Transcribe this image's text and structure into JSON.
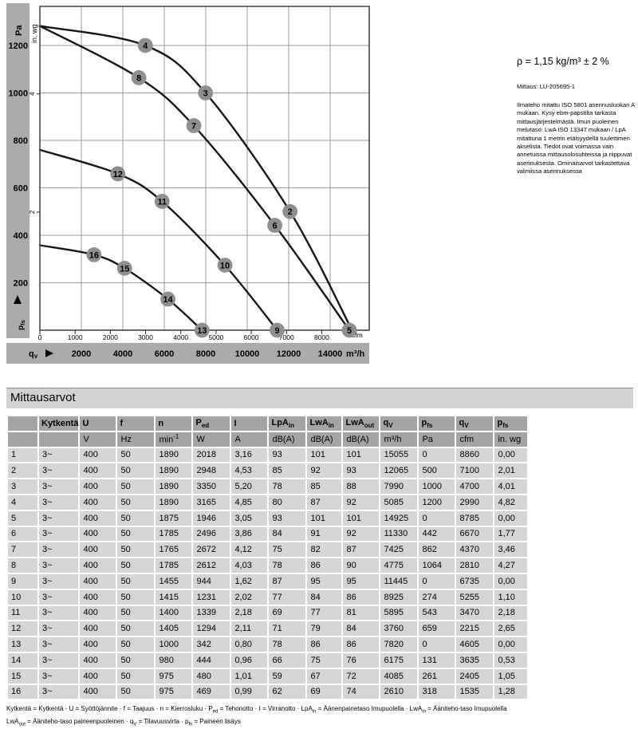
{
  "colors": {
    "axis_band": "#ababab",
    "table_header": "#a4a4a4",
    "table_row": "#d5d5d5",
    "section_band": "#d3d3d3",
    "marker": "#8f8f8f",
    "fan_curve": "#161616",
    "system_curve": "#878787",
    "grid": "#9b9b9b",
    "plot_border": "#4a4a4a"
  },
  "chart_data": {
    "type": "line",
    "title": "",
    "x_axis": {
      "quantity": "qv",
      "unit_band": "m³/h",
      "m3h_ticks": [
        2000,
        4000,
        6000,
        8000,
        10000,
        12000,
        14000
      ],
      "cfm_unit": "cfm",
      "cfm_ticks": [
        0,
        1000,
        2000,
        3000,
        4000,
        5000,
        6000,
        7000,
        8000
      ],
      "range_m3h": [
        0,
        15900
      ]
    },
    "y_axis": {
      "quantity": "pfs",
      "unit_band": "Pa",
      "pa_ticks": [
        200,
        400,
        600,
        800,
        1000,
        1200
      ],
      "inwg_unit": "in. wg",
      "inwg_ticks": [
        {
          "label": "4",
          "pa": 996
        },
        {
          "label": "2",
          "pa": 498
        }
      ],
      "range_pa": [
        0,
        1365
      ]
    },
    "fan_curves": [
      {
        "through_points": "4,3,2,1",
        "points_q_p": [
          [
            0,
            1282
          ],
          [
            5085,
            1200
          ],
          [
            7990,
            1000
          ],
          [
            12065,
            500
          ],
          [
            15055,
            0
          ]
        ]
      },
      {
        "through_points": "8,7,6,5",
        "points_q_p": [
          [
            0,
            1282
          ],
          [
            4775,
            1064
          ],
          [
            7425,
            862
          ],
          [
            11330,
            442
          ],
          [
            14925,
            0
          ]
        ]
      },
      {
        "through_points": "12,11,10,9",
        "points_q_p": [
          [
            0,
            760
          ],
          [
            3760,
            659
          ],
          [
            5895,
            543
          ],
          [
            8925,
            274
          ],
          [
            11445,
            0
          ]
        ]
      },
      {
        "through_points": "16,15,14,13",
        "points_q_p": [
          [
            0,
            358
          ],
          [
            2610,
            318
          ],
          [
            4085,
            261
          ],
          [
            6175,
            131
          ],
          [
            7820,
            0
          ]
        ]
      }
    ],
    "system_curves": [
      {
        "k_pa_per_m3h2": 4.66e-08,
        "q_end": 5085,
        "through_points": "16,12,8,4"
      },
      {
        "k_pa_per_m3h2": 1.5655e-08,
        "q_end": 7990,
        "through_points": "15,11,7,3"
      },
      {
        "k_pa_per_m3h2": 3.4375e-09,
        "q_end": 12065,
        "through_points": "14,10,6,2"
      }
    ],
    "operating_points": [
      {
        "label": "2",
        "q_m3h": 12065,
        "p_pa": 500
      },
      {
        "label": "3",
        "q_m3h": 7990,
        "p_pa": 1000
      },
      {
        "label": "4",
        "q_m3h": 5085,
        "p_pa": 1200
      },
      {
        "label": "5",
        "q_m3h": 14925,
        "p_pa": 0
      },
      {
        "label": "6",
        "q_m3h": 11330,
        "p_pa": 442
      },
      {
        "label": "7",
        "q_m3h": 7425,
        "p_pa": 862
      },
      {
        "label": "8",
        "q_m3h": 4775,
        "p_pa": 1064
      },
      {
        "label": "9",
        "q_m3h": 11445,
        "p_pa": 0
      },
      {
        "label": "10",
        "q_m3h": 8925,
        "p_pa": 274
      },
      {
        "label": "11",
        "q_m3h": 5895,
        "p_pa": 543
      },
      {
        "label": "12",
        "q_m3h": 3760,
        "p_pa": 659
      },
      {
        "label": "13",
        "q_m3h": 7820,
        "p_pa": 0
      },
      {
        "label": "14",
        "q_m3h": 6175,
        "p_pa": 131
      },
      {
        "label": "15",
        "q_m3h": 4085,
        "p_pa": 261
      },
      {
        "label": "16",
        "q_m3h": 2610,
        "p_pa": 318
      }
    ]
  },
  "side_text": {
    "density": "ρ = 1,15 kg/m³ ± 2 %",
    "measurement": "Mittaus: LU-205695-1",
    "note": "Ilmateho mitattu ISO 5801 asennusluokan A mukaan. Kysy ebm-papstilta tarkasta mittausjärjestelmästä. Imun puoleinen melutaso: LwA  ISO 13347 mukaan / LpA mitattuna 1 metrin etäisyydellä tuulettimen akselista. Tiedot ovat voimassa vain annetuissa mittausolosuhteissa ja riippuvat asennuksesta. Ominaisarvot tarkastettava valmiissa asennuksessa"
  },
  "section_title": "Mittausarvot",
  "table": {
    "columns": [
      {
        "main": ""
      },
      {
        "main": "Kytkentä"
      },
      {
        "main": "U"
      },
      {
        "main": "f"
      },
      {
        "main": "n"
      },
      {
        "main": "P",
        "sub": "ed"
      },
      {
        "main": "I"
      },
      {
        "main": "LpA",
        "sub": "in"
      },
      {
        "main": "LwA",
        "sub": "in"
      },
      {
        "main": "LwA",
        "sub": "out"
      },
      {
        "main": "q",
        "sub": "V"
      },
      {
        "main": "p",
        "sub": "fs"
      },
      {
        "main": "q",
        "sub": "V"
      },
      {
        "main": "p",
        "sub": "fs"
      }
    ],
    "units": [
      "",
      "",
      "V",
      "Hz",
      {
        "main": "min",
        "sup": "-1"
      },
      "W",
      "A",
      "dB(A)",
      "dB(A)",
      "dB(A)",
      "m³/h",
      "Pa",
      "cfm",
      "in. wg"
    ],
    "rows": [
      [
        "1",
        "3~",
        "400",
        "50",
        "1890",
        "2018",
        "3,16",
        "93",
        "101",
        "101",
        "15055",
        "0",
        "8860",
        "0,00"
      ],
      [
        "2",
        "3~",
        "400",
        "50",
        "1890",
        "2948",
        "4,53",
        "85",
        "92",
        "93",
        "12065",
        "500",
        "7100",
        "2,01"
      ],
      [
        "3",
        "3~",
        "400",
        "50",
        "1890",
        "3350",
        "5,20",
        "78",
        "85",
        "88",
        "7990",
        "1000",
        "4700",
        "4,01"
      ],
      [
        "4",
        "3~",
        "400",
        "50",
        "1890",
        "3165",
        "4,85",
        "80",
        "87",
        "92",
        "5085",
        "1200",
        "2990",
        "4,82"
      ],
      [
        "5",
        "3~",
        "400",
        "50",
        "1875",
        "1946",
        "3,05",
        "93",
        "101",
        "101",
        "14925",
        "0",
        "8785",
        "0,00"
      ],
      [
        "6",
        "3~",
        "400",
        "50",
        "1785",
        "2496",
        "3,86",
        "84",
        "91",
        "92",
        "11330",
        "442",
        "6670",
        "1,77"
      ],
      [
        "7",
        "3~",
        "400",
        "50",
        "1765",
        "2672",
        "4,12",
        "75",
        "82",
        "87",
        "7425",
        "862",
        "4370",
        "3,46"
      ],
      [
        "8",
        "3~",
        "400",
        "50",
        "1785",
        "2612",
        "4,03",
        "78",
        "86",
        "90",
        "4775",
        "1064",
        "2810",
        "4,27"
      ],
      [
        "9",
        "3~",
        "400",
        "50",
        "1455",
        "944",
        "1,62",
        "87",
        "95",
        "95",
        "11445",
        "0",
        "6735",
        "0,00"
      ],
      [
        "10",
        "3~",
        "400",
        "50",
        "1415",
        "1231",
        "2,02",
        "77",
        "84",
        "86",
        "8925",
        "274",
        "5255",
        "1,10"
      ],
      [
        "11",
        "3~",
        "400",
        "50",
        "1400",
        "1339",
        "2,18",
        "69",
        "77",
        "81",
        "5895",
        "543",
        "3470",
        "2,18"
      ],
      [
        "12",
        "3~",
        "400",
        "50",
        "1405",
        "1294",
        "2,11",
        "71",
        "79",
        "84",
        "3760",
        "659",
        "2215",
        "2,65"
      ],
      [
        "13",
        "3~",
        "400",
        "50",
        "1000",
        "342",
        "0,80",
        "78",
        "86",
        "86",
        "7820",
        "0",
        "4605",
        "0,00"
      ],
      [
        "14",
        "3~",
        "400",
        "50",
        "980",
        "444",
        "0,96",
        "66",
        "75",
        "76",
        "6175",
        "131",
        "3635",
        "0,53"
      ],
      [
        "15",
        "3~",
        "400",
        "50",
        "975",
        "480",
        "1,01",
        "59",
        "67",
        "72",
        "4085",
        "261",
        "2405",
        "1,05"
      ],
      [
        "16",
        "3~",
        "400",
        "50",
        "975",
        "469",
        "0,99",
        "62",
        "69",
        "74",
        "2610",
        "318",
        "1535",
        "1,28"
      ]
    ]
  },
  "footnote": {
    "line1": [
      {
        "t": "Kytkentä = Kytkentä · U = Syöttöjännite · f = Taajuus · n = Kierrosluku · P"
      },
      {
        "s": "ed"
      },
      {
        "t": " = Tehonotto · I = Virranotto · LpA"
      },
      {
        "s": "in"
      },
      {
        "t": " = Äänenpainetaso Imupuolella · LwA"
      },
      {
        "s": "in"
      },
      {
        "t": " = Ääniteho-taso Imupuolella"
      }
    ],
    "line2": [
      {
        "t": "LwA"
      },
      {
        "s": "out"
      },
      {
        "t": " = Ääniteho-taso paineenpuoleinen · q"
      },
      {
        "s": "V"
      },
      {
        "t": " = Tilavuusvirta · p"
      },
      {
        "s": "fs"
      },
      {
        "t": " = Paineen lisäys"
      }
    ]
  }
}
